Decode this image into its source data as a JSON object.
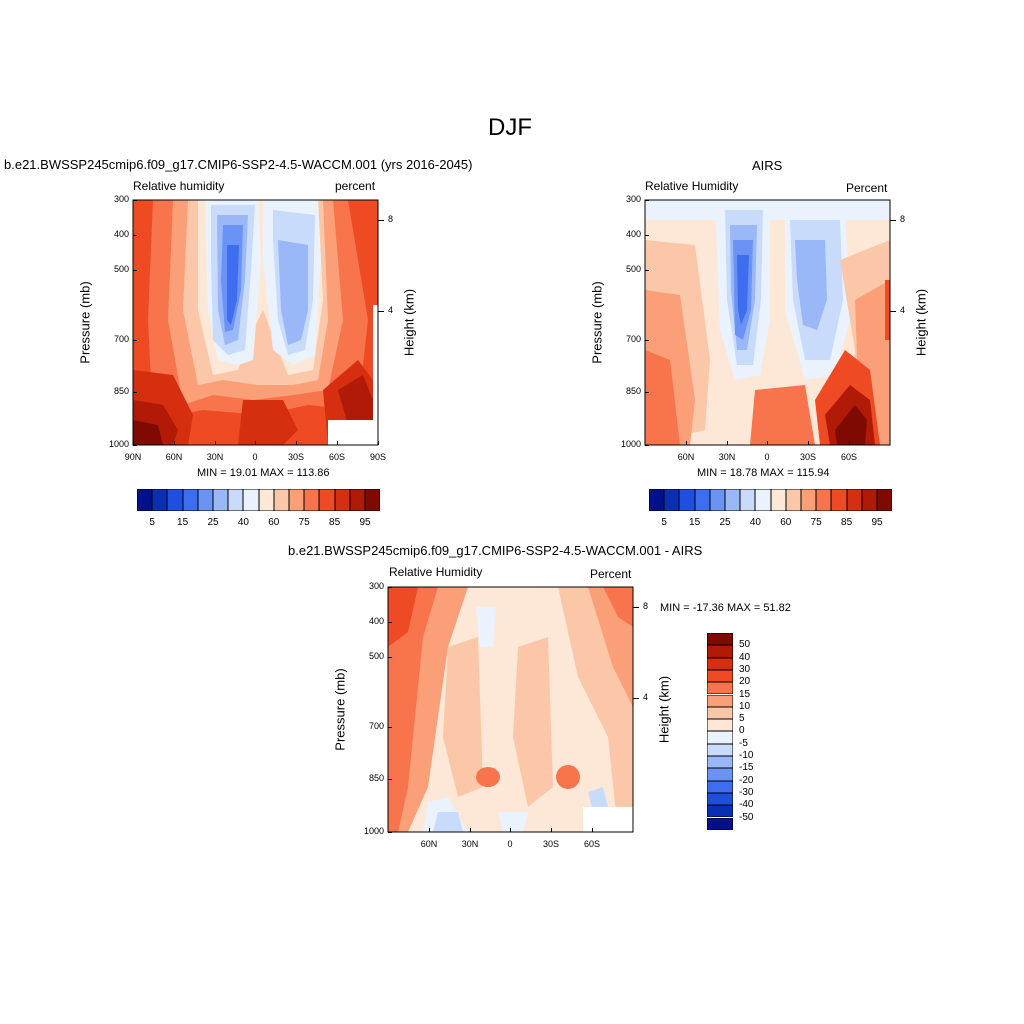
{
  "figure": {
    "title": "DJF"
  },
  "chart_data": [
    {
      "type": "heatmap",
      "title": "b.e21.BWSSP245cmip6.f09_g17.CMIP6-SSP2-4.5-WACCM.001 (yrs 2016-2045)",
      "left_label": "Relative humidity",
      "right_label": "percent",
      "ylabel": "Pressure (mb)",
      "ylabel_right": "Height (km)",
      "yticks": [
        "300",
        "400",
        "500",
        "700",
        "850",
        "1000"
      ],
      "yticks_right": [
        "8",
        "4"
      ],
      "xticks": [
        "90N",
        "60N",
        "30N",
        "0",
        "30S",
        "60S",
        "90S"
      ],
      "stats": "MIN =  19.01  MAX = 113.86",
      "colorbar": {
        "levels": [
          "5",
          "15",
          "25",
          "40",
          "60",
          "75",
          "85",
          "95"
        ]
      }
    },
    {
      "type": "heatmap",
      "title": "AIRS",
      "left_label": "Relative Humidity",
      "right_label": "Percent",
      "ylabel": "Pressure (mb)",
      "ylabel_right": "Height (km)",
      "yticks": [
        "300",
        "400",
        "500",
        "700",
        "850",
        "1000"
      ],
      "yticks_right": [
        "8",
        "4"
      ],
      "xticks": [
        "60N",
        "30N",
        "0",
        "30S",
        "60S"
      ],
      "stats": "MIN =  18.78  MAX = 115.94",
      "colorbar": {
        "levels": [
          "5",
          "15",
          "25",
          "40",
          "60",
          "75",
          "85",
          "95"
        ]
      }
    },
    {
      "type": "heatmap",
      "title": "b.e21.BWSSP245cmip6.f09_g17.CMIP6-SSP2-4.5-WACCM.001 - AIRS",
      "left_label": "Relative Humidity",
      "right_label": "Percent",
      "ylabel": "Pressure (mb)",
      "ylabel_right": "Height (km)",
      "yticks": [
        "300",
        "400",
        "500",
        "700",
        "850",
        "1000"
      ],
      "yticks_right": [
        "8",
        "4"
      ],
      "xticks": [
        "60N",
        "30N",
        "0",
        "30S",
        "60S"
      ],
      "stats": "MIN = -17.36  MAX =  51.82",
      "colorbar": {
        "levels": [
          "50",
          "40",
          "30",
          "20",
          "15",
          "10",
          "5",
          "0",
          "-5",
          "-10",
          "-15",
          "-20",
          "-30",
          "-40",
          "-50"
        ]
      }
    }
  ],
  "colors": {
    "abs_scale": [
      "#000f8a",
      "#0a2fb4",
      "#1f4fe0",
      "#3e6ef0",
      "#6b93f5",
      "#9ab8f8",
      "#c8dbfb",
      "#eaf2fe",
      "#fde8d8",
      "#fcc7a8",
      "#fb9f78",
      "#f7744c",
      "#ee4b24",
      "#d62f0f",
      "#b01a06",
      "#7e0a02"
    ],
    "diff_scale": [
      "#7e0a02",
      "#b01a06",
      "#d62f0f",
      "#ee4b24",
      "#f7744c",
      "#fb9f78",
      "#fcc7a8",
      "#fde8d8",
      "#eaf2fe",
      "#c8dbfb",
      "#9ab8f8",
      "#6b93f5",
      "#3e6ef0",
      "#1f4fe0",
      "#0a2fb4",
      "#000f8a"
    ]
  }
}
